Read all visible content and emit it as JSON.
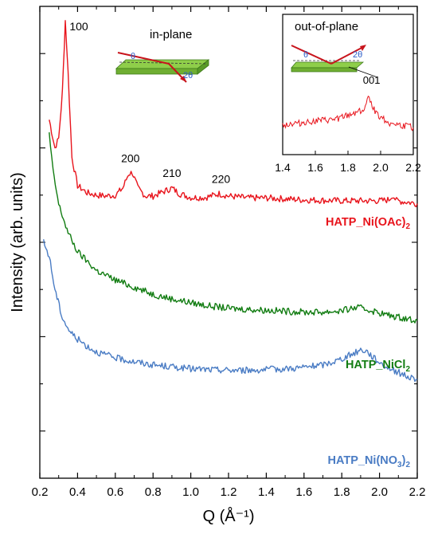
{
  "chart_data": [
    {
      "type": "line",
      "title": "",
      "xlabel": "Q (Å⁻¹)",
      "ylabel": "Intensity (arb. units)",
      "xlim": [
        0.2,
        2.2
      ],
      "x_ticks": [
        "0.2",
        "0.4",
        "0.6",
        "0.8",
        "1.0",
        "1.2",
        "1.4",
        "1.6",
        "1.8",
        "2.0",
        "2.2"
      ],
      "y_ticks_labeled": false,
      "grid": false,
      "series": [
        {
          "name": "HATP_Ni(OAc)2",
          "color": "#e8141c",
          "points": [
            [
              0.25,
              0.76
            ],
            [
              0.28,
              0.7
            ],
            [
              0.3,
              0.72
            ],
            [
              0.32,
              0.82
            ],
            [
              0.335,
              0.97
            ],
            [
              0.35,
              0.86
            ],
            [
              0.37,
              0.68
            ],
            [
              0.4,
              0.62
            ],
            [
              0.45,
              0.605
            ],
            [
              0.5,
              0.6
            ],
            [
              0.55,
              0.598
            ],
            [
              0.6,
              0.6
            ],
            [
              0.64,
              0.615
            ],
            [
              0.67,
              0.645
            ],
            [
              0.69,
              0.648
            ],
            [
              0.72,
              0.615
            ],
            [
              0.76,
              0.598
            ],
            [
              0.8,
              0.598
            ],
            [
              0.86,
              0.608
            ],
            [
              0.9,
              0.615
            ],
            [
              0.94,
              0.603
            ],
            [
              1.0,
              0.595
            ],
            [
              1.08,
              0.595
            ],
            [
              1.15,
              0.603
            ],
            [
              1.2,
              0.598
            ],
            [
              1.3,
              0.594
            ],
            [
              1.4,
              0.594
            ],
            [
              1.5,
              0.592
            ],
            [
              1.6,
              0.59
            ],
            [
              1.7,
              0.589
            ],
            [
              1.8,
              0.588
            ],
            [
              1.9,
              0.588
            ],
            [
              2.0,
              0.588
            ],
            [
              2.05,
              0.59
            ],
            [
              2.07,
              0.6
            ],
            [
              2.09,
              0.588
            ],
            [
              2.15,
              0.585
            ],
            [
              2.2,
              0.582
            ]
          ],
          "peak_labels": [
            {
              "text": "100",
              "x": 0.335
            },
            {
              "text": "200",
              "x": 0.68
            },
            {
              "text": "210",
              "x": 0.9
            },
            {
              "text": "220",
              "x": 1.16
            }
          ]
        },
        {
          "name": "HATP_NiCl2",
          "color": "#117c11",
          "points": [
            [
              0.25,
              0.73
            ],
            [
              0.27,
              0.65
            ],
            [
              0.3,
              0.58
            ],
            [
              0.35,
              0.52
            ],
            [
              0.4,
              0.48
            ],
            [
              0.45,
              0.46
            ],
            [
              0.5,
              0.44
            ],
            [
              0.6,
              0.42
            ],
            [
              0.7,
              0.405
            ],
            [
              0.8,
              0.39
            ],
            [
              0.9,
              0.38
            ],
            [
              1.0,
              0.372
            ],
            [
              1.1,
              0.365
            ],
            [
              1.2,
              0.36
            ],
            [
              1.3,
              0.358
            ],
            [
              1.4,
              0.356
            ],
            [
              1.5,
              0.354
            ],
            [
              1.6,
              0.352
            ],
            [
              1.7,
              0.352
            ],
            [
              1.8,
              0.355
            ],
            [
              1.88,
              0.362
            ],
            [
              1.95,
              0.356
            ],
            [
              2.05,
              0.345
            ],
            [
              2.15,
              0.338
            ],
            [
              2.2,
              0.335
            ]
          ]
        },
        {
          "name": "HATP_Ni(NO3)2",
          "color": "#4a7cc4",
          "points": [
            [
              0.22,
              0.5
            ],
            [
              0.25,
              0.47
            ],
            [
              0.28,
              0.4
            ],
            [
              0.32,
              0.34
            ],
            [
              0.36,
              0.31
            ],
            [
              0.4,
              0.295
            ],
            [
              0.45,
              0.28
            ],
            [
              0.5,
              0.268
            ],
            [
              0.6,
              0.255
            ],
            [
              0.7,
              0.247
            ],
            [
              0.8,
              0.24
            ],
            [
              0.9,
              0.236
            ],
            [
              1.0,
              0.232
            ],
            [
              1.1,
              0.23
            ],
            [
              1.2,
              0.229
            ],
            [
              1.3,
              0.229
            ],
            [
              1.4,
              0.23
            ],
            [
              1.5,
              0.232
            ],
            [
              1.6,
              0.235
            ],
            [
              1.7,
              0.24
            ],
            [
              1.78,
              0.25
            ],
            [
              1.85,
              0.262
            ],
            [
              1.9,
              0.272
            ],
            [
              1.93,
              0.27
            ],
            [
              1.97,
              0.255
            ],
            [
              2.02,
              0.24
            ],
            [
              2.08,
              0.228
            ],
            [
              2.15,
              0.215
            ],
            [
              2.2,
              0.21
            ]
          ]
        }
      ],
      "series_labels": {
        "ni_oac": {
          "prefix": "HATP_Ni(OAc)",
          "sub": "2"
        },
        "ni_cl": {
          "prefix": "HATP_NiCl",
          "sub": "2"
        },
        "ni_no3": {
          "prefix": "HATP_Ni(NO",
          "sub": "3",
          "suffix": ")",
          "sub2": "2"
        }
      }
    },
    {
      "type": "line",
      "title": "out-of-plane",
      "xlim": [
        1.4,
        2.2
      ],
      "x_ticks": [
        "1.4",
        "1.6",
        "1.8",
        "2.0",
        "2.2"
      ],
      "grid": false,
      "series": [
        {
          "name": "HATP_Ni(OAc)2",
          "color": "#e8141c",
          "points": [
            [
              1.4,
              0.4
            ],
            [
              1.5,
              0.42
            ],
            [
              1.6,
              0.45
            ],
            [
              1.7,
              0.46
            ],
            [
              1.8,
              0.52
            ],
            [
              1.86,
              0.58
            ],
            [
              1.9,
              0.6
            ],
            [
              1.93,
              0.78
            ],
            [
              1.96,
              0.6
            ],
            [
              2.0,
              0.5
            ],
            [
              2.05,
              0.43
            ],
            [
              2.1,
              0.4
            ],
            [
              2.2,
              0.36
            ]
          ]
        }
      ],
      "peak_labels": [
        {
          "text": "001",
          "x": 1.95
        }
      ]
    }
  ],
  "schematic": {
    "inplane_label": "in-plane",
    "theta": "θ",
    "two_theta": "2θ"
  }
}
